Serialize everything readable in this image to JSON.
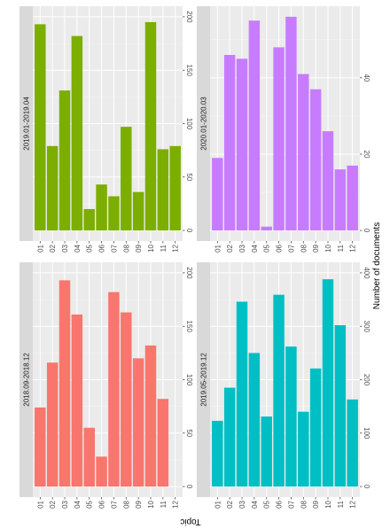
{
  "chart_data": {
    "type": "bar",
    "orientation": "rotated",
    "ylabel": "Number of documents",
    "xlabel": "Topic",
    "categories": [
      "01",
      "02",
      "03",
      "04",
      "05",
      "06",
      "07",
      "08",
      "09",
      "10",
      "11",
      "12"
    ],
    "grid": true,
    "panels": [
      {
        "strip": "2019.01-2019.04",
        "color": "#7CAE00",
        "ylim": [
          0,
          200
        ],
        "ticks": [
          0,
          50,
          100,
          150,
          200
        ],
        "values": [
          193,
          79,
          131,
          182,
          20,
          43,
          32,
          97,
          36,
          195,
          76,
          79
        ]
      },
      {
        "strip": "2020.01-2020.03",
        "color": "#C77CFF",
        "ylim": [
          0,
          56
        ],
        "ticks": [
          0,
          20,
          40
        ],
        "values": [
          19,
          46,
          45,
          55,
          1,
          48,
          56,
          41,
          37,
          26,
          16,
          17
        ]
      },
      {
        "strip": "2018.09-2018.12",
        "color": "#F8766D",
        "ylim": [
          0,
          200
        ],
        "ticks": [
          0,
          50,
          100,
          150,
          200
        ],
        "values": [
          74,
          116,
          193,
          161,
          55,
          28,
          182,
          163,
          120,
          132,
          82,
          0
        ]
      },
      {
        "strip": "2019.05-2019.12",
        "color": "#00BFC4",
        "ylim": [
          0,
          400
        ],
        "ticks": [
          0,
          100,
          200,
          300,
          400
        ],
        "values": [
          123,
          185,
          346,
          250,
          131,
          359,
          262,
          140,
          221,
          388,
          302,
          163
        ]
      }
    ]
  }
}
